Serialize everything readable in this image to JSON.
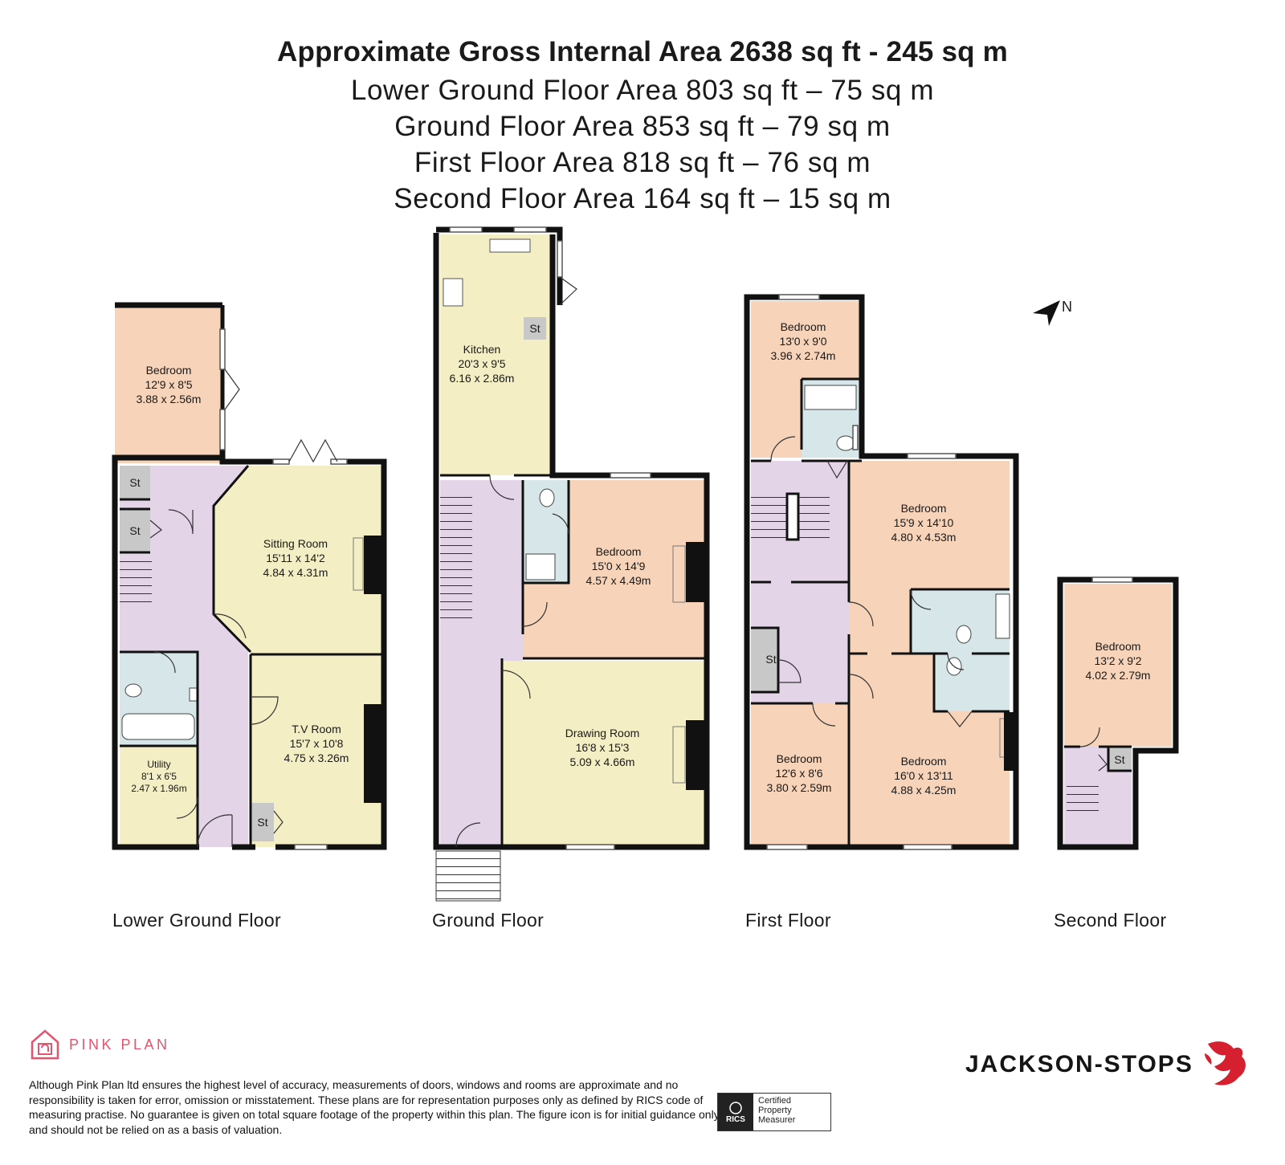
{
  "header": {
    "title": "Approximate Gross Internal Area 2638 sq ft - 245 sq m",
    "lines": [
      "Lower Ground Floor Area 803 sq ft – 75 sq m",
      "Ground Floor Area 853 sq ft – 79 sq m",
      "First Floor Area 818 sq ft – 76 sq m",
      "Second Floor Area 164 sq ft – 15 sq m"
    ]
  },
  "floors": [
    {
      "label": "Lower Ground Floor",
      "rooms": [
        {
          "name": "Bedroom",
          "imperial": "12'9 x 8'5",
          "metric": "3.88 x 2.56m"
        },
        {
          "name": "Sitting Room",
          "imperial": "15'11 x 14'2",
          "metric": "4.84 x 4.31m"
        },
        {
          "name": "T.V Room",
          "imperial": "15'7 x 10'8",
          "metric": "4.75 x 3.26m"
        },
        {
          "name": "Utility",
          "imperial": "8'1 x 6'5",
          "metric": "2.47 x 1.96m"
        }
      ],
      "stores": [
        "St",
        "St",
        "St"
      ]
    },
    {
      "label": "Ground Floor",
      "rooms": [
        {
          "name": "Kitchen",
          "imperial": "20'3 x 9'5",
          "metric": "6.16 x 2.86m"
        },
        {
          "name": "Bedroom",
          "imperial": "15'0 x 14'9",
          "metric": "4.57 x 4.49m"
        },
        {
          "name": "Drawing Room",
          "imperial": "16'8 x 15'3",
          "metric": "5.09 x 4.66m"
        }
      ],
      "stores": [
        "St"
      ]
    },
    {
      "label": "First Floor",
      "rooms": [
        {
          "name": "Bedroom",
          "imperial": "13'0 x 9'0",
          "metric": "3.96 x 2.74m"
        },
        {
          "name": "Bedroom",
          "imperial": "15'9 x 14'10",
          "metric": "4.80 x 4.53m"
        },
        {
          "name": "Bedroom",
          "imperial": "12'6 x 8'6",
          "metric": "3.80 x 2.59m"
        },
        {
          "name": "Bedroom",
          "imperial": "16'0 x 13'11",
          "metric": "4.88 x 4.25m"
        }
      ],
      "stores": [
        "St"
      ]
    },
    {
      "label": "Second Floor",
      "rooms": [
        {
          "name": "Bedroom",
          "imperial": "13'2 x 9'2",
          "metric": "4.02 x 2.79m"
        }
      ],
      "stores": [
        "St"
      ]
    }
  ],
  "compass": {
    "label": "N"
  },
  "footer": {
    "brand_left": "PINK PLAN",
    "disclaimer": "Although Pink Plan ltd ensures the highest level of accuracy, measurements of doors, windows and rooms are approximate and no responsibility is taken for error, omission or misstatement. These plans are for representation purposes only as defined by RICS code of measuring practise. No guarantee is given on total square footage of the property within this plan. The figure icon is for initial guidance only and should not be relied on as a basis of valuation.",
    "rics_label": "RICS",
    "certified_lines": [
      "Certified",
      "Property",
      "Measurer"
    ],
    "brand_right": "JACKSON-STOPS"
  },
  "colors": {
    "bedroom": "#f6d3b9",
    "living": "#f3eec4",
    "hall": "#e4d4e8",
    "bathroom": "#d7e6e8",
    "store": "#c8c8c8",
    "wall": "#111111",
    "pink_brand": "#e3546e",
    "red_brand": "#d6202f"
  }
}
